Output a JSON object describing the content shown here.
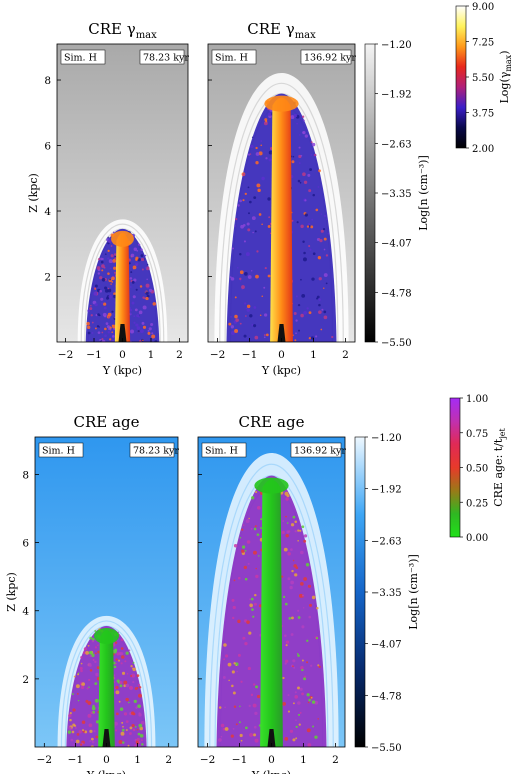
{
  "chart_data": [
    {
      "type": "heatmap",
      "title": "CRE γmax",
      "title_main": "CRE γ",
      "title_sub": "max",
      "xlabel": "Y (kpc)",
      "ylabel": "Z (kpc)",
      "xlim": [
        -2.3,
        2.3
      ],
      "ylim": [
        0,
        9.1
      ],
      "xticks": [
        -2,
        -1,
        0,
        1,
        2
      ],
      "yticks": [
        2,
        4,
        6,
        8
      ],
      "panels": [
        {
          "label": "Sim. H",
          "time": "78.23 kyr",
          "jet_height": 3.6,
          "jet_width": 1.5
        },
        {
          "label": "Sim. H",
          "time": "136.92 kyr",
          "jet_height": 7.9,
          "jet_width": 2.0
        }
      ],
      "colorbar_density": {
        "label": "Log[n (cm⁻³)]",
        "ticks": [
          "-1.20",
          "-1.92",
          "-2.63",
          "-3.35",
          "-4.07",
          "-4.78",
          "-5.50"
        ],
        "colors": [
          "#f4f4f4",
          "#000000"
        ]
      },
      "colorbar_quantity": {
        "label": "Log(γmax)",
        "label_main": "Log(γ",
        "label_sub": "max",
        "label_end": ")",
        "ticks": [
          "9.00",
          "7.25",
          "5.50",
          "3.75",
          "2.00"
        ],
        "colors": [
          "#ffffff",
          "#fff35c",
          "#ff9a1a",
          "#e8281c",
          "#b0207a",
          "#3b1fc8",
          "#08084a",
          "#000000"
        ]
      }
    },
    {
      "type": "heatmap",
      "title": "CRE age",
      "xlabel": "Y (kpc)",
      "ylabel": "Z (kpc)",
      "xlim": [
        -2.3,
        2.3
      ],
      "ylim": [
        0,
        9.1
      ],
      "xticks": [
        -2,
        -1,
        0,
        1,
        2
      ],
      "yticks": [
        2,
        4,
        6,
        8
      ],
      "panels": [
        {
          "label": "Sim. H",
          "time": "78.23 kyr",
          "jet_height": 3.7,
          "jet_width": 1.5
        },
        {
          "label": "Sim. H",
          "time": "136.92 kyr",
          "jet_height": 8.3,
          "jet_width": 2.0
        }
      ],
      "colorbar_density": {
        "label": "Log[n (cm⁻³)]",
        "ticks": [
          "-1.20",
          "-1.92",
          "-2.63",
          "-3.35",
          "-4.07",
          "-4.78",
          "-5.50"
        ],
        "colors": [
          "#eef8ff",
          "#3ea6f5",
          "#1565c8",
          "#072a6e",
          "#000000"
        ]
      },
      "colorbar_quantity": {
        "label": "CRE age: t/tjet",
        "label_main": "CRE age: t/t",
        "label_sub": "jet",
        "label_end": "",
        "ticks": [
          "1.00",
          "0.75",
          "0.50",
          "0.25",
          "0.00"
        ],
        "colors": [
          "#a52cf5",
          "#c030b0",
          "#e02a55",
          "#e73a2a",
          "#9a7a18",
          "#2fb822",
          "#21e01a"
        ]
      }
    }
  ]
}
